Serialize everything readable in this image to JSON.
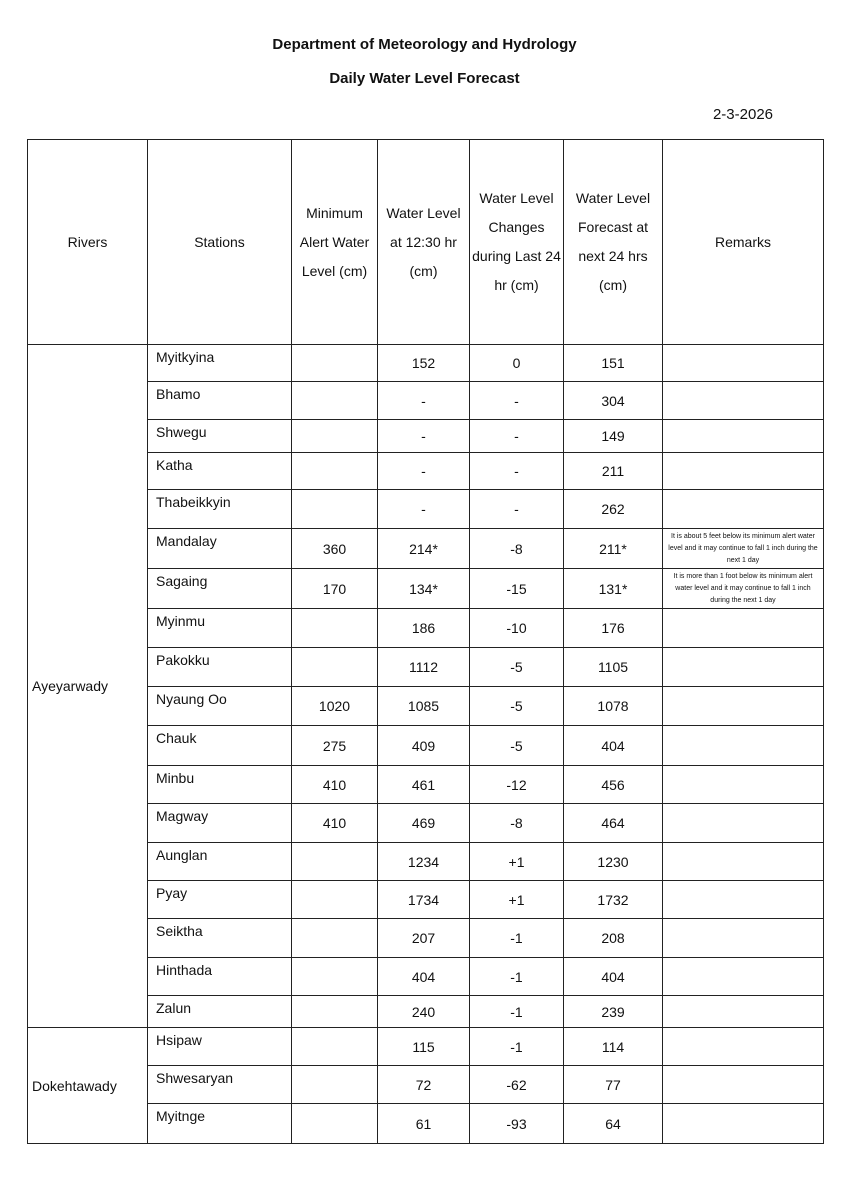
{
  "header": {
    "line1": "Department of Meteorology and Hydrology",
    "line2": "Daily Water Level Forecast",
    "date": "2-3-2026"
  },
  "columns": [
    "Rivers",
    "Stations",
    "Minimum Alert Water Level (cm)",
    "Water Level at 12:30 hr (cm)",
    "Water Level Changes during Last 24 hr (cm)",
    "Water Level Forecast at next 24 hrs (cm)",
    "Remarks"
  ],
  "rivers": [
    {
      "name": "Ayeyarwady",
      "stations": [
        {
          "station": "Myitkyina",
          "alert": "",
          "level": "152",
          "change": "0",
          "forecast": "151",
          "remarks": ""
        },
        {
          "station": "Bhamo",
          "alert": "",
          "level": "-",
          "change": "-",
          "forecast": "304",
          "remarks": ""
        },
        {
          "station": "Shwegu",
          "alert": "",
          "level": "-",
          "change": "-",
          "forecast": "149",
          "remarks": ""
        },
        {
          "station": "Katha",
          "alert": "",
          "level": "-",
          "change": "-",
          "forecast": "211",
          "remarks": ""
        },
        {
          "station": "Thabeikkyin",
          "alert": "",
          "level": "-",
          "change": "-",
          "forecast": "262",
          "remarks": ""
        },
        {
          "station": "Mandalay",
          "alert": "360",
          "level": "214*",
          "change": "-8",
          "forecast": "211*",
          "remarks": "It is about  5 feet below its minimum alert water level and  it may continue to fall 1 inch during the next 1 day"
        },
        {
          "station": "Sagaing",
          "alert": "170",
          "level": "134*",
          "change": "-15",
          "forecast": "131*",
          "remarks": "It is more than 1 foot below its minimum alert water level and it may continue to fall 1 inch during the next 1 day"
        },
        {
          "station": "Myinmu",
          "alert": "",
          "level": "186",
          "change": "-10",
          "forecast": "176",
          "remarks": ""
        },
        {
          "station": "Pakokku",
          "alert": "",
          "level": "1112",
          "change": "-5",
          "forecast": "1105",
          "remarks": ""
        },
        {
          "station": "Nyaung Oo",
          "alert": "1020",
          "level": "1085",
          "change": "-5",
          "forecast": "1078",
          "remarks": ""
        },
        {
          "station": "Chauk",
          "alert": "275",
          "level": "409",
          "change": "-5",
          "forecast": "404",
          "remarks": ""
        },
        {
          "station": "Minbu",
          "alert": "410",
          "level": "461",
          "change": "-12",
          "forecast": "456",
          "remarks": ""
        },
        {
          "station": "Magway",
          "alert": "410",
          "level": "469",
          "change": "-8",
          "forecast": "464",
          "remarks": ""
        },
        {
          "station": "Aunglan",
          "alert": "",
          "level": "1234",
          "change": "+1",
          "forecast": "1230",
          "remarks": ""
        },
        {
          "station": "Pyay",
          "alert": "",
          "level": "1734",
          "change": "+1",
          "forecast": "1732",
          "remarks": ""
        },
        {
          "station": "Seiktha",
          "alert": "",
          "level": "207",
          "change": "-1",
          "forecast": "208",
          "remarks": ""
        },
        {
          "station": "Hinthada",
          "alert": "",
          "level": "404",
          "change": "-1",
          "forecast": "404",
          "remarks": ""
        },
        {
          "station": "Zalun",
          "alert": "",
          "level": "240",
          "change": "-1",
          "forecast": "239",
          "remarks": ""
        }
      ]
    },
    {
      "name": "Dokehtawady",
      "stations": [
        {
          "station": "Hsipaw",
          "alert": "",
          "level": "115",
          "change": "-1",
          "forecast": "114",
          "remarks": ""
        },
        {
          "station": "Shwesaryan",
          "alert": "",
          "level": "72",
          "change": "-62",
          "forecast": "77",
          "remarks": ""
        },
        {
          "station": "Myitnge",
          "alert": "",
          "level": "61",
          "change": "-93",
          "forecast": "64",
          "remarks": ""
        }
      ]
    }
  ]
}
